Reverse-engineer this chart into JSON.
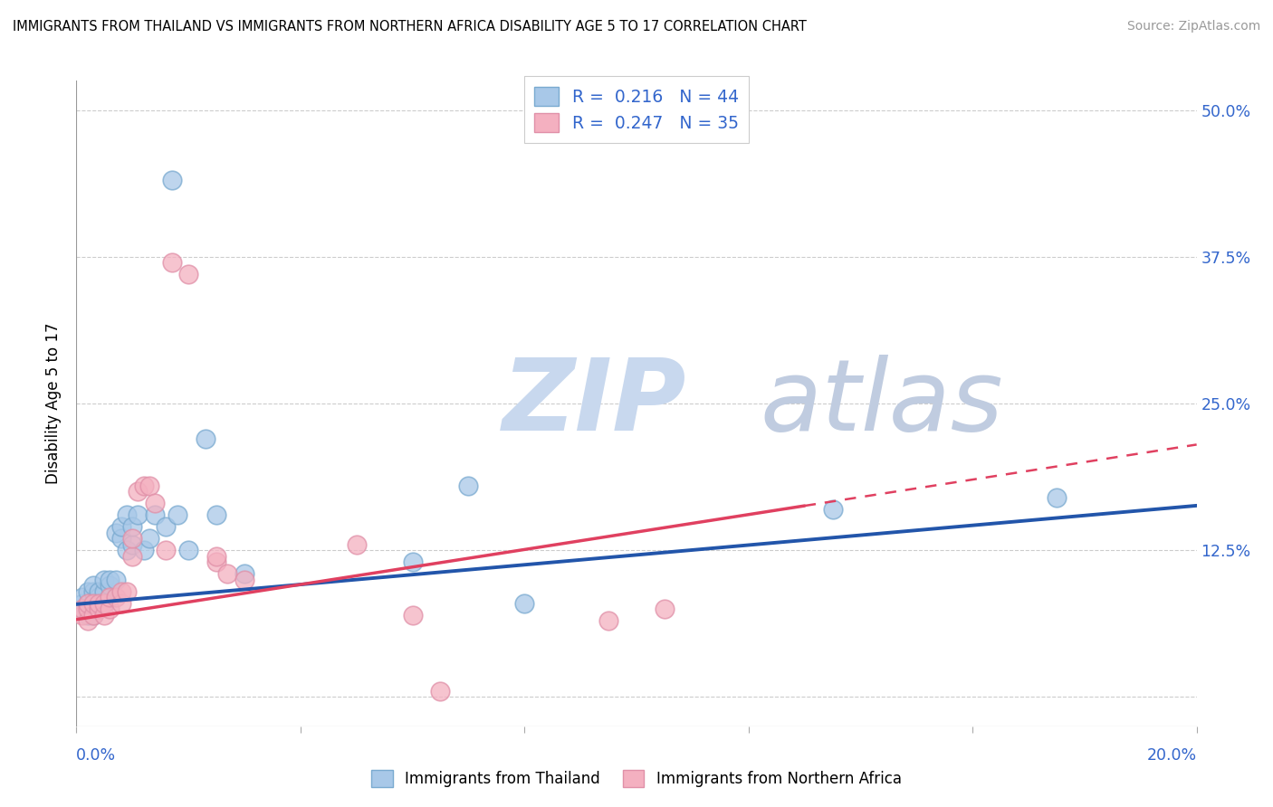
{
  "title": "IMMIGRANTS FROM THAILAND VS IMMIGRANTS FROM NORTHERN AFRICA DISABILITY AGE 5 TO 17 CORRELATION CHART",
  "source": "Source: ZipAtlas.com",
  "ylabel": "Disability Age 5 to 17",
  "yticks": [
    0.0,
    0.125,
    0.25,
    0.375,
    0.5
  ],
  "ytick_labels": [
    "",
    "12.5%",
    "25.0%",
    "37.5%",
    "50.0%"
  ],
  "xlim": [
    0.0,
    0.2
  ],
  "ylim": [
    -0.025,
    0.525
  ],
  "thailand_R": 0.216,
  "thailand_N": 44,
  "northafrica_R": 0.247,
  "northafrica_N": 35,
  "blue_marker_face": "#a8c8e8",
  "blue_marker_edge": "#7aaad0",
  "pink_marker_face": "#f4b0c0",
  "pink_marker_edge": "#e090a8",
  "blue_line_color": "#2255aa",
  "pink_line_color": "#e04060",
  "watermark_zip_color": "#c8d8ee",
  "watermark_atlas_color": "#c0cce0",
  "thailand_x": [
    0.001,
    0.001,
    0.001,
    0.002,
    0.002,
    0.002,
    0.002,
    0.003,
    0.003,
    0.003,
    0.003,
    0.004,
    0.004,
    0.004,
    0.005,
    0.005,
    0.005,
    0.006,
    0.006,
    0.006,
    0.007,
    0.007,
    0.008,
    0.008,
    0.009,
    0.009,
    0.01,
    0.01,
    0.011,
    0.012,
    0.013,
    0.014,
    0.016,
    0.017,
    0.018,
    0.02,
    0.023,
    0.025,
    0.03,
    0.06,
    0.07,
    0.08,
    0.135,
    0.175
  ],
  "thailand_y": [
    0.075,
    0.08,
    0.085,
    0.07,
    0.075,
    0.08,
    0.09,
    0.07,
    0.075,
    0.09,
    0.095,
    0.08,
    0.085,
    0.09,
    0.08,
    0.09,
    0.1,
    0.085,
    0.095,
    0.1,
    0.1,
    0.14,
    0.135,
    0.145,
    0.125,
    0.155,
    0.13,
    0.145,
    0.155,
    0.125,
    0.135,
    0.155,
    0.145,
    0.44,
    0.155,
    0.125,
    0.22,
    0.155,
    0.105,
    0.115,
    0.18,
    0.08,
    0.16,
    0.17
  ],
  "northafrica_x": [
    0.001,
    0.001,
    0.002,
    0.002,
    0.002,
    0.003,
    0.003,
    0.004,
    0.004,
    0.005,
    0.005,
    0.006,
    0.006,
    0.007,
    0.008,
    0.008,
    0.009,
    0.01,
    0.01,
    0.011,
    0.012,
    0.013,
    0.014,
    0.016,
    0.017,
    0.02,
    0.025,
    0.025,
    0.027,
    0.03,
    0.05,
    0.06,
    0.065,
    0.095,
    0.105
  ],
  "northafrica_y": [
    0.07,
    0.075,
    0.065,
    0.075,
    0.08,
    0.07,
    0.08,
    0.075,
    0.08,
    0.07,
    0.08,
    0.075,
    0.085,
    0.085,
    0.08,
    0.09,
    0.09,
    0.12,
    0.135,
    0.175,
    0.18,
    0.18,
    0.165,
    0.125,
    0.37,
    0.36,
    0.115,
    0.12,
    0.105,
    0.1,
    0.13,
    0.07,
    0.005,
    0.065,
    0.075
  ],
  "trend_blue_x0": 0.0,
  "trend_blue_y0": 0.079,
  "trend_blue_x1": 0.2,
  "trend_blue_y1": 0.163,
  "trend_pink_x0": 0.0,
  "trend_pink_y0": 0.066,
  "trend_pink_x1": 0.2,
  "trend_pink_y1": 0.215,
  "trend_pink_solid_end": 0.13
}
